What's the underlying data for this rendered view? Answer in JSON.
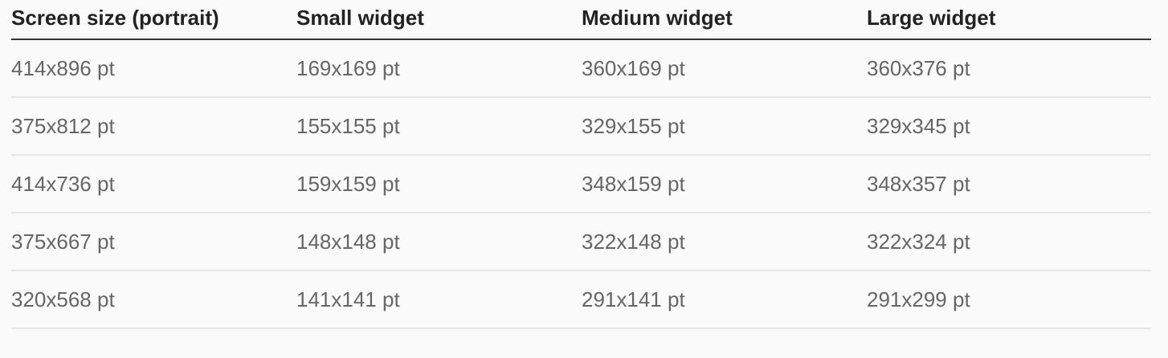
{
  "table": {
    "headers": [
      "Screen size (portrait)",
      "Small widget",
      "Medium widget",
      "Large widget"
    ],
    "rows": [
      [
        "414x896 pt",
        "169x169 pt",
        "360x169 pt",
        "360x376 pt"
      ],
      [
        "375x812 pt",
        "155x155 pt",
        "329x155 pt",
        "329x345 pt"
      ],
      [
        "414x736 pt",
        "159x159 pt",
        "348x159 pt",
        "348x357 pt"
      ],
      [
        "375x667 pt",
        "148x148 pt",
        "322x148 pt",
        "322x324 pt"
      ],
      [
        "320x568 pt",
        "141x141 pt",
        "291x141 pt",
        "291x299 pt"
      ]
    ]
  }
}
